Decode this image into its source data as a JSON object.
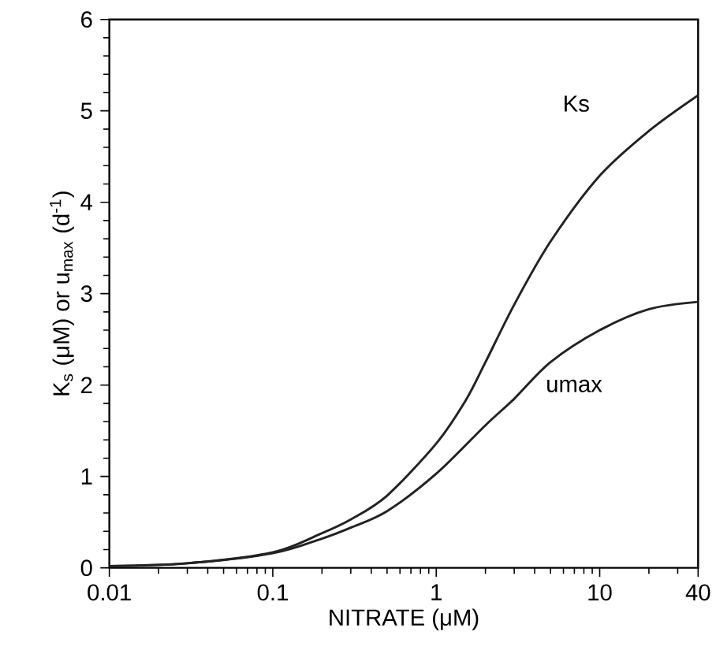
{
  "chart_data": {
    "type": "line",
    "xlabel": "NITRATE (μM)",
    "ylabel": "K$_{s}$ (μM) or u$_{max}$ (d$^{-1}$)",
    "log": "x",
    "xlim": [
      0.01,
      40
    ],
    "ylim": [
      0,
      6
    ],
    "xticks": [
      0.01,
      0.1,
      1,
      10,
      40
    ],
    "yticks": [
      0,
      1,
      2,
      3,
      4,
      5,
      6
    ],
    "grid": false,
    "legend": false,
    "marker": "none",
    "line_style": "solid",
    "series": [
      {
        "name": "Ks",
        "color": "#222222",
        "x": [
          0.01,
          0.03,
          0.1,
          0.2,
          0.3,
          0.5,
          1,
          1.5,
          2,
          3,
          5,
          10,
          20,
          40
        ],
        "values": [
          0.02,
          0.05,
          0.17,
          0.38,
          0.53,
          0.79,
          1.36,
          1.82,
          2.25,
          2.88,
          3.57,
          4.29,
          4.78,
          5.17
        ]
      },
      {
        "name": "umax",
        "color": "#222222",
        "x": [
          0.01,
          0.03,
          0.1,
          0.2,
          0.3,
          0.5,
          1,
          2,
          3,
          5,
          10,
          20,
          40
        ],
        "values": [
          0.02,
          0.05,
          0.16,
          0.32,
          0.44,
          0.62,
          1.03,
          1.56,
          1.85,
          2.25,
          2.6,
          2.83,
          2.91
        ]
      }
    ]
  }
}
